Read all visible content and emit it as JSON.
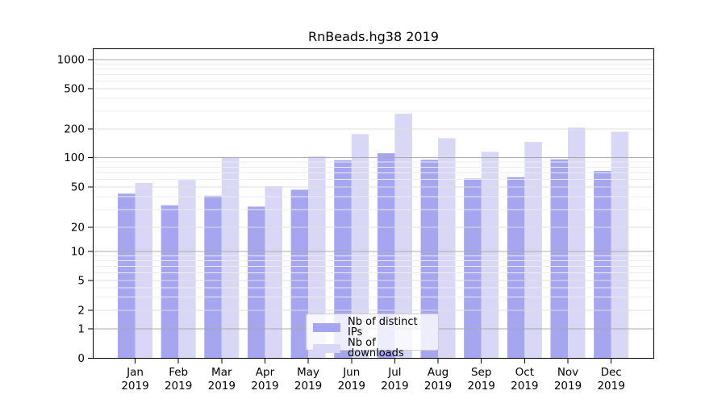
{
  "window": {
    "background": "#ffffff"
  },
  "chart_data": {
    "type": "bar",
    "title": "RnBeads.hg38 2019",
    "x": {
      "months": [
        "Jan",
        "Feb",
        "Mar",
        "Apr",
        "May",
        "Jun",
        "Jul",
        "Aug",
        "Sep",
        "Oct",
        "Nov",
        "Dec"
      ],
      "year": "2019"
    },
    "series": [
      {
        "name": "Nb of distinct IPs",
        "color": "#a5a5f0",
        "values": [
          43,
          33,
          41,
          32,
          47,
          94,
          111,
          95,
          61,
          63,
          96,
          73
        ]
      },
      {
        "name": "Nb of downloads",
        "color": "#d8d8f6",
        "values": [
          55,
          59,
          100,
          51,
          103,
          177,
          283,
          160,
          115,
          146,
          206,
          187
        ]
      }
    ],
    "yscale": "log-like",
    "yticks": [
      0,
      1,
      2,
      5,
      10,
      20,
      50,
      100,
      200,
      500,
      1000
    ],
    "ylim": [
      0,
      1300
    ],
    "grid": "on",
    "legend": {
      "position": "lower center"
    }
  }
}
